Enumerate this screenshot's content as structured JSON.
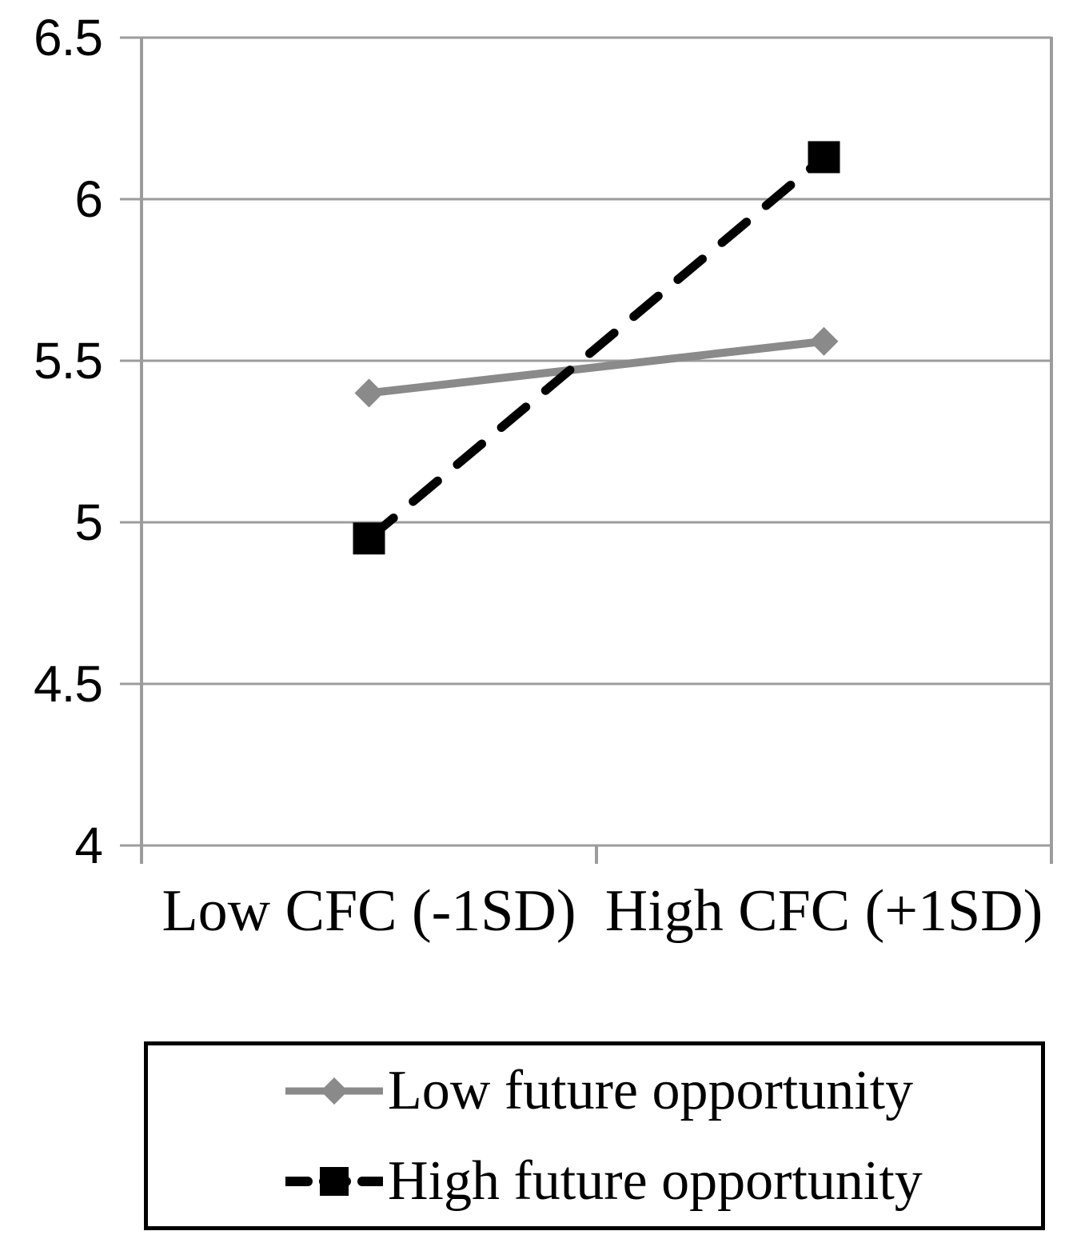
{
  "chart_data": {
    "type": "line",
    "title": "",
    "xlabel": "",
    "ylabel": "",
    "categories": [
      "Low CFC (-1SD)",
      "High CFC (+1SD)"
    ],
    "series": [
      {
        "name": "Low future opportunity",
        "values": [
          5.4,
          5.56
        ],
        "color": "#8A8A8A",
        "line_style": "solid",
        "marker": "diamond"
      },
      {
        "name": "High future opportunity",
        "values": [
          4.95,
          6.13
        ],
        "color": "#000000",
        "line_style": "dashed",
        "marker": "square"
      }
    ],
    "ylim": [
      4,
      6.5
    ],
    "ytick_values": [
      6.5,
      6,
      5.5,
      5,
      4.5,
      4
    ],
    "ytick_labels": [
      "6.5",
      "6",
      "5.5",
      "5",
      "4.5",
      "4"
    ],
    "grid": "horizontal",
    "legend_position": "bottom-boxed",
    "axis_color": "#9C9C9C",
    "background_color": "#FFFFFF"
  }
}
